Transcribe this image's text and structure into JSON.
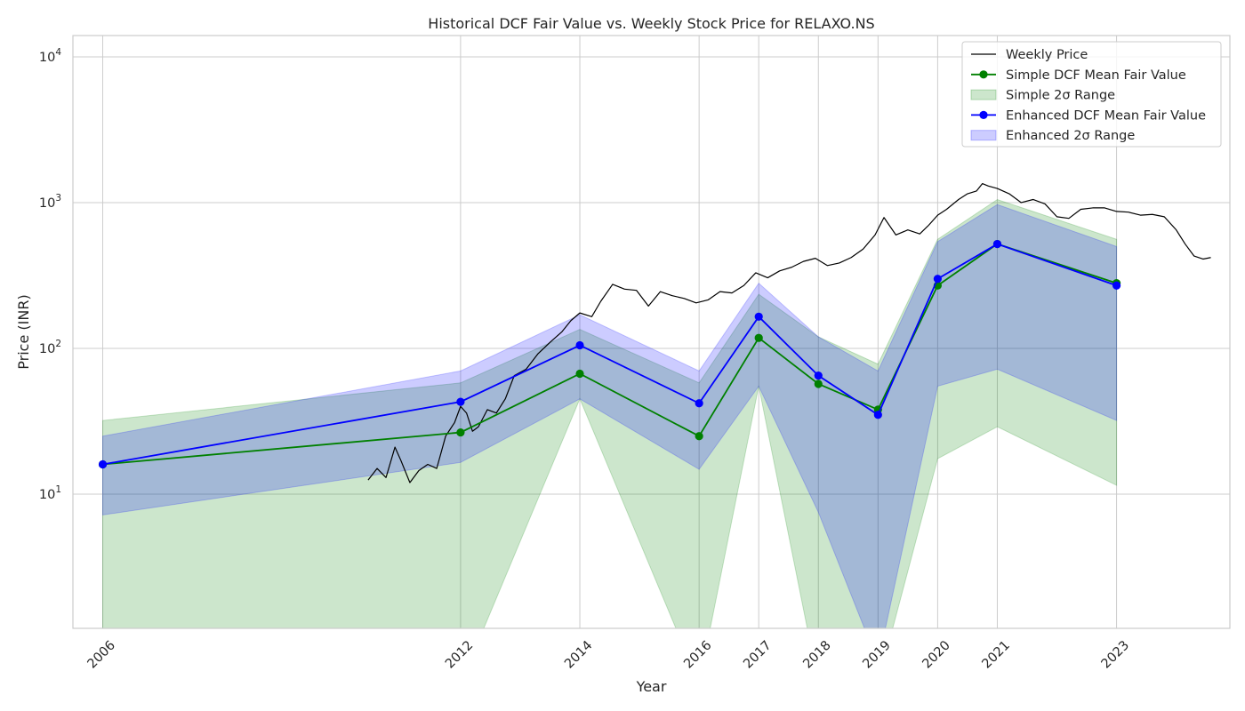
{
  "chart_data": {
    "type": "line",
    "title": "Historical DCF Fair Value vs. Weekly Stock Price for RELAXO.NS",
    "xlabel": "Year",
    "ylabel": "Price (INR)",
    "yscale": "log",
    "ylim": [
      1.2,
      14000
    ],
    "xlim": [
      2005.5,
      2024.9
    ],
    "grid": true,
    "legend_position": "top-right",
    "x_ticks": [
      "2006",
      "2012",
      "2014",
      "2016",
      "2017",
      "2018",
      "2019",
      "2020",
      "2021",
      "2023"
    ],
    "y_ticks": [
      {
        "value": 10,
        "base": "10",
        "exp": "1"
      },
      {
        "value": 100,
        "base": "10",
        "exp": "2"
      },
      {
        "value": 1000,
        "base": "10",
        "exp": "3"
      },
      {
        "value": 10000,
        "base": "10",
        "exp": "4"
      }
    ],
    "colors": {
      "price": "#000000",
      "simple": "#008000",
      "simple_band": "#008000",
      "enhanced": "#0000ff",
      "enhanced_band": "#0000ff",
      "grid": "#cccccc",
      "frame": "#cccccc"
    },
    "legend": [
      {
        "label": "Weekly Price",
        "kind": "line",
        "color": "#000000"
      },
      {
        "label": "Simple DCF Mean Fair Value",
        "kind": "line-marker",
        "color": "#008000"
      },
      {
        "label": "Simple 2σ Range",
        "kind": "band",
        "color": "#008000"
      },
      {
        "label": "Enhanced DCF Mean Fair Value",
        "kind": "line-marker",
        "color": "#0000ff"
      },
      {
        "label": "Enhanced 2σ Range",
        "kind": "band",
        "color": "#0000ff"
      }
    ],
    "fair_value_years": [
      2006,
      2012,
      2014,
      2016,
      2017,
      2018,
      2019,
      2020,
      2021,
      2023
    ],
    "series": [
      {
        "name": "Simple DCF Mean Fair Value",
        "values": [
          16,
          26.5,
          67,
          25,
          118,
          57,
          38,
          270,
          520,
          280
        ]
      },
      {
        "name": "Enhanced DCF Mean Fair Value",
        "values": [
          16,
          43,
          105,
          42,
          165,
          65,
          35,
          300,
          520,
          270
        ]
      }
    ],
    "bands": [
      {
        "name": "Simple 2σ Range",
        "low": [
          0.5,
          0.5,
          45,
          0.5,
          55,
          0.5,
          0.5,
          17.5,
          29,
          11.5
        ],
        "high": [
          32,
          58,
          135,
          58,
          235,
          120,
          78,
          560,
          1050,
          560
        ]
      },
      {
        "name": "Enhanced 2σ Range",
        "low": [
          7.2,
          16.5,
          45,
          14.8,
          55,
          7.5,
          0.7,
          55,
          72,
          32
        ],
        "high": [
          25,
          70,
          170,
          70,
          280,
          120,
          70,
          540,
          970,
          500
        ]
      }
    ],
    "weekly_price": {
      "name": "Weekly Price",
      "points": [
        [
          2010.45,
          12.5
        ],
        [
          2010.6,
          15
        ],
        [
          2010.75,
          13
        ],
        [
          2010.9,
          21
        ],
        [
          2011.0,
          17
        ],
        [
          2011.15,
          12
        ],
        [
          2011.3,
          14.5
        ],
        [
          2011.45,
          16
        ],
        [
          2011.6,
          15
        ],
        [
          2011.75,
          25
        ],
        [
          2011.9,
          31
        ],
        [
          2012.0,
          40
        ],
        [
          2012.1,
          36
        ],
        [
          2012.2,
          27
        ],
        [
          2012.3,
          29
        ],
        [
          2012.45,
          38
        ],
        [
          2012.6,
          36
        ],
        [
          2012.75,
          45
        ],
        [
          2012.9,
          65
        ],
        [
          2013.1,
          72
        ],
        [
          2013.3,
          92
        ],
        [
          2013.5,
          110
        ],
        [
          2013.7,
          130
        ],
        [
          2013.85,
          155
        ],
        [
          2014.0,
          175
        ],
        [
          2014.2,
          165
        ],
        [
          2014.35,
          210
        ],
        [
          2014.55,
          275
        ],
        [
          2014.75,
          255
        ],
        [
          2014.95,
          250
        ],
        [
          2015.15,
          195
        ],
        [
          2015.35,
          245
        ],
        [
          2015.55,
          230
        ],
        [
          2015.75,
          220
        ],
        [
          2015.95,
          205
        ],
        [
          2016.15,
          215
        ],
        [
          2016.35,
          245
        ],
        [
          2016.55,
          240
        ],
        [
          2016.75,
          270
        ],
        [
          2016.95,
          330
        ],
        [
          2017.15,
          305
        ],
        [
          2017.35,
          340
        ],
        [
          2017.55,
          360
        ],
        [
          2017.75,
          395
        ],
        [
          2017.95,
          415
        ],
        [
          2018.15,
          370
        ],
        [
          2018.35,
          385
        ],
        [
          2018.55,
          420
        ],
        [
          2018.75,
          480
        ],
        [
          2018.95,
          600
        ],
        [
          2019.1,
          790
        ],
        [
          2019.3,
          600
        ],
        [
          2019.5,
          650
        ],
        [
          2019.7,
          610
        ],
        [
          2019.85,
          700
        ],
        [
          2020.0,
          820
        ],
        [
          2020.15,
          900
        ],
        [
          2020.35,
          1050
        ],
        [
          2020.5,
          1150
        ],
        [
          2020.65,
          1200
        ],
        [
          2020.75,
          1350
        ],
        [
          2020.85,
          1300
        ],
        [
          2021.0,
          1250
        ],
        [
          2021.2,
          1150
        ],
        [
          2021.4,
          1000
        ],
        [
          2021.6,
          1050
        ],
        [
          2021.8,
          980
        ],
        [
          2022.0,
          800
        ],
        [
          2022.2,
          780
        ],
        [
          2022.4,
          900
        ],
        [
          2022.6,
          920
        ],
        [
          2022.8,
          920
        ],
        [
          2023.0,
          870
        ],
        [
          2023.2,
          860
        ],
        [
          2023.4,
          820
        ],
        [
          2023.6,
          830
        ],
        [
          2023.8,
          800
        ],
        [
          2024.0,
          650
        ],
        [
          2024.15,
          520
        ],
        [
          2024.3,
          430
        ],
        [
          2024.45,
          410
        ],
        [
          2024.58,
          420
        ]
      ]
    }
  }
}
